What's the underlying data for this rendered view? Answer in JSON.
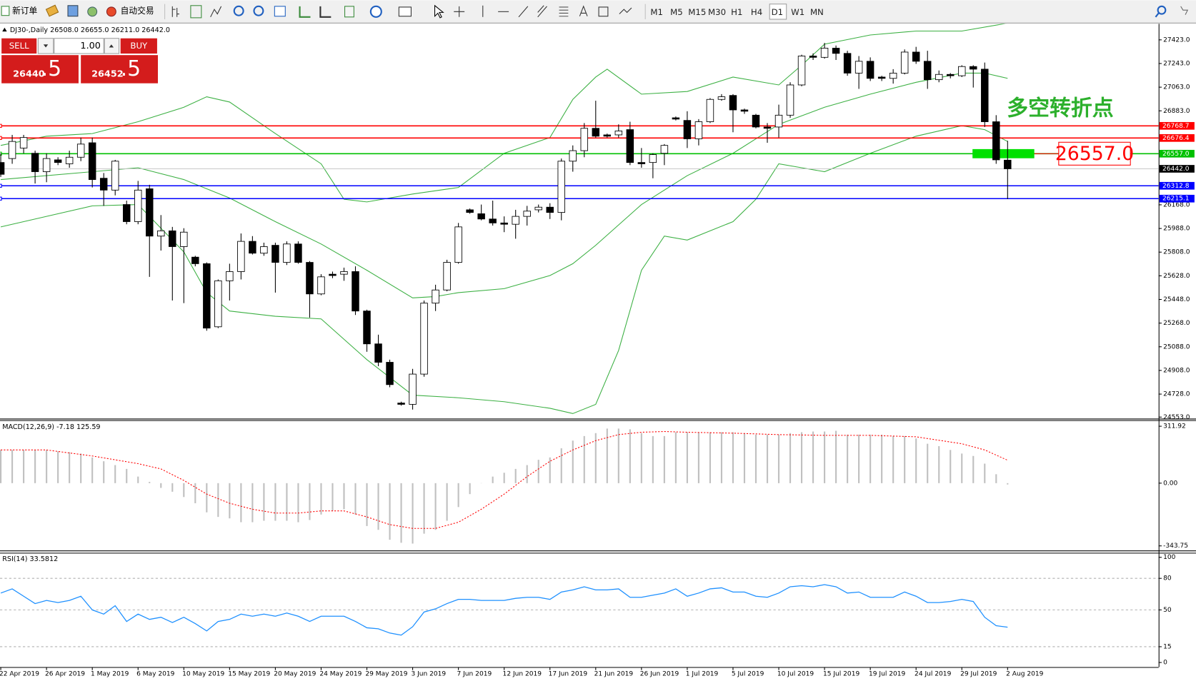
{
  "toolbar": {
    "new_order": "新订单",
    "auto_trading": "自动交易",
    "timeframes": [
      "M1",
      "M5",
      "M15",
      "M30",
      "H1",
      "H4",
      "D1",
      "W1",
      "MN"
    ]
  },
  "trade_panel": {
    "sell": "SELL",
    "buy": "BUY",
    "volume": "1.00",
    "bid_main": "26440",
    "bid_frac": ".5",
    "ask_main": "26452",
    "ask_frac": ".5"
  },
  "chart_data": [
    {
      "type": "candlestick",
      "legend_text": "DJ30-,Daily  26508.0 26655.0 26211.0 26442.0",
      "annotation": "多空转折点",
      "categories": [
        "22 Apr 2019",
        null,
        null,
        null,
        "26 Apr 2019",
        null,
        null,
        null,
        "1 May 2019",
        null,
        null,
        null,
        "6 May 2019",
        null,
        null,
        null,
        "10 May 2019",
        null,
        null,
        null,
        "15 May 2019",
        null,
        null,
        null,
        "20 May 2019",
        null,
        null,
        null,
        "24 May 2019",
        null,
        null,
        null,
        "29 May 2019",
        null,
        null,
        null,
        "3 Jun 2019",
        null,
        null,
        null,
        "7 Jun 2019",
        null,
        null,
        null,
        "12 Jun 2019",
        null,
        null,
        null,
        "17 Jun 2019",
        null,
        null,
        null,
        "21 Jun 2019",
        null,
        null,
        null,
        "26 Jun 2019",
        null,
        null,
        null,
        "1 Jul 2019",
        null,
        null,
        null,
        "5 Jul 2019",
        null,
        null,
        null,
        "10 Jul 2019",
        null,
        null,
        null,
        "15 Jul 2019",
        null,
        null,
        null,
        "19 Jul 2019",
        null,
        null,
        null,
        "24 Jul 2019",
        null,
        null,
        null,
        "29 Jul 2019",
        null,
        null,
        null,
        "2 Aug 2019"
      ],
      "open": [
        26490,
        26520,
        26600,
        26560,
        26420,
        26510,
        26480,
        26530,
        26640,
        26370,
        26280,
        26170,
        26040,
        26290,
        25930,
        25970,
        25850,
        25770,
        25720,
        25240,
        25590,
        25660,
        25890,
        25800,
        25860,
        25730,
        25870,
        25730,
        25490,
        25640,
        25640,
        25660,
        25360,
        25110,
        24970,
        24660,
        24650,
        24880,
        25420,
        25520,
        25730,
        26130,
        26100,
        26060,
        26030,
        26020,
        26080,
        26130,
        26150,
        26110,
        26500,
        26580,
        26750,
        26700,
        26700,
        26740,
        26490,
        26490,
        26560,
        26830,
        26810,
        26670,
        26800,
        26970,
        27000,
        26890,
        26850,
        26760,
        26760,
        26850,
        27080,
        27300,
        27290,
        27360,
        27320,
        27170,
        27260,
        27140,
        27130,
        27170,
        27330,
        27260,
        27120,
        27160,
        27150,
        27220,
        27200,
        26800,
        26508
      ],
      "high": [
        26560,
        26700,
        26700,
        26580,
        26560,
        26530,
        26580,
        26680,
        26680,
        26410,
        26510,
        26200,
        26350,
        26320,
        26090,
        26000,
        25990,
        25780,
        25730,
        25600,
        25720,
        25950,
        25930,
        25880,
        25880,
        25890,
        25890,
        25740,
        25640,
        25660,
        25690,
        25700,
        25370,
        25180,
        24990,
        24670,
        24920,
        25440,
        25560,
        25750,
        26030,
        26140,
        26170,
        26200,
        26080,
        26130,
        26160,
        26170,
        26180,
        26520,
        26620,
        26790,
        26960,
        26710,
        26780,
        26800,
        26600,
        26560,
        26630,
        26840,
        26880,
        26820,
        26980,
        27010,
        27010,
        26900,
        26860,
        26790,
        26930,
        27100,
        27310,
        27320,
        27400,
        27380,
        27340,
        27300,
        27290,
        27150,
        27200,
        27350,
        27370,
        27340,
        27190,
        27170,
        27230,
        27230,
        27250,
        26850,
        26655
      ],
      "low": [
        26380,
        26480,
        26560,
        26330,
        26340,
        26470,
        26450,
        26500,
        26300,
        26160,
        26240,
        26020,
        26020,
        25620,
        25820,
        25440,
        25420,
        25700,
        25210,
        25230,
        25440,
        25600,
        25790,
        25780,
        25500,
        25710,
        25720,
        25310,
        25480,
        25610,
        25590,
        25330,
        25050,
        24940,
        24780,
        24640,
        24610,
        24860,
        25360,
        25510,
        25720,
        26100,
        26050,
        26010,
        25960,
        25910,
        26010,
        26110,
        26060,
        26050,
        26420,
        26530,
        26680,
        26680,
        26680,
        26470,
        26450,
        26370,
        26470,
        26810,
        26600,
        26620,
        26790,
        26960,
        26720,
        26860,
        26750,
        26640,
        26680,
        26830,
        27070,
        27270,
        27280,
        27270,
        27150,
        27050,
        27110,
        27110,
        27090,
        27160,
        27240,
        27050,
        27100,
        27130,
        27140,
        27060,
        26760,
        26480,
        26211
      ],
      "close": [
        26400,
        26650,
        26680,
        26420,
        26520,
        26490,
        26530,
        26630,
        26360,
        26280,
        26500,
        26040,
        26280,
        25930,
        25970,
        25850,
        25960,
        25720,
        25230,
        25590,
        25660,
        25890,
        25800,
        25850,
        25730,
        25870,
        25730,
        25490,
        25620,
        25630,
        25660,
        25360,
        25110,
        24970,
        24800,
        24650,
        24880,
        25420,
        25520,
        25730,
        26000,
        26110,
        26060,
        26030,
        26020,
        26080,
        26120,
        26150,
        26110,
        26500,
        26580,
        26750,
        26690,
        26690,
        26730,
        26490,
        26480,
        26550,
        26620,
        26820,
        26670,
        26800,
        26970,
        26990,
        26890,
        26880,
        26760,
        26750,
        26850,
        27080,
        27300,
        27290,
        27360,
        27320,
        27170,
        27260,
        27130,
        27130,
        27170,
        27330,
        27260,
        27120,
        27160,
        27150,
        27220,
        27200,
        26800,
        26510,
        26442
      ],
      "up_color": "#ffffff",
      "down_color": "#000000",
      "bands": [
        {
          "color": "#3cb043",
          "x": [
            0,
            4,
            8,
            12,
            16,
            18,
            20,
            24,
            28,
            30,
            32,
            36,
            40,
            44,
            48,
            50,
            52,
            53,
            56,
            60,
            64,
            68,
            70,
            72,
            76,
            80,
            84,
            88
          ],
          "values": [
            26620,
            26690,
            26710,
            26800,
            26910,
            26990,
            26950,
            26710,
            26480,
            26210,
            26190,
            26250,
            26300,
            26560,
            26680,
            26970,
            27140,
            27200,
            27010,
            27030,
            27140,
            27080,
            27230,
            27390,
            27460,
            27490,
            27490,
            27550
          ]
        },
        {
          "color": "#3cb043",
          "x": [
            0,
            8,
            12,
            16,
            20,
            24,
            28,
            32,
            36,
            38,
            40,
            44,
            48,
            50,
            52,
            56,
            60,
            64,
            68,
            72,
            76,
            80,
            84,
            86,
            88
          ],
          "values": [
            26360,
            26420,
            26450,
            26360,
            26220,
            26040,
            25870,
            25670,
            25460,
            25470,
            25500,
            25530,
            25630,
            25720,
            25860,
            26170,
            26390,
            26560,
            26780,
            26910,
            27010,
            27100,
            27170,
            27170,
            27130
          ]
        },
        {
          "color": "#3cb043",
          "x": [
            0,
            4,
            8,
            12,
            16,
            18,
            20,
            24,
            28,
            32,
            36,
            40,
            44,
            48,
            50,
            52,
            54,
            56,
            58,
            60,
            64,
            66,
            68,
            70,
            72,
            76,
            80,
            84,
            86,
            88
          ],
          "values": [
            26000,
            26080,
            26160,
            26170,
            25810,
            25500,
            25360,
            25320,
            25300,
            24990,
            24720,
            24700,
            24670,
            24620,
            24580,
            24650,
            25060,
            25670,
            25930,
            25900,
            26040,
            26210,
            26480,
            26450,
            26420,
            26560,
            26690,
            26770,
            26740,
            26650
          ]
        }
      ],
      "levels": [
        {
          "value": 26768.7,
          "label": "26768.7",
          "color": "#ff0000"
        },
        {
          "value": 26676.4,
          "label": "26676.4",
          "color": "#ff0000"
        },
        {
          "value": 26557.0,
          "label": "26557.0",
          "color": "#00c000"
        },
        {
          "value": 26442.0,
          "label": "26442.0",
          "color": "#c0c0c0",
          "label_color": "#000000"
        },
        {
          "value": 26312.8,
          "label": "26312.8",
          "color": "#0000ff"
        },
        {
          "value": 26215.1,
          "label": "26215.1",
          "color": "#0000ff"
        }
      ],
      "ylim": [
        24553,
        27423
      ],
      "yticks": [
        {
          "value": 27423,
          "label": "27423.0"
        },
        {
          "value": 27243,
          "label": "27243.0"
        },
        {
          "value": 27063,
          "label": "27063.0"
        },
        {
          "value": 26883,
          "label": "26883.0"
        },
        {
          "value": 26168,
          "label": "26168.0"
        },
        {
          "value": 25988,
          "label": "25988.0"
        },
        {
          "value": 25808,
          "label": "25808.0"
        },
        {
          "value": 25628,
          "label": "25628.0"
        },
        {
          "value": 25448,
          "label": "25448.0"
        },
        {
          "value": 25268,
          "label": "25268.0"
        },
        {
          "value": 25088,
          "label": "25088.0"
        },
        {
          "value": 24908,
          "label": "24908.0"
        },
        {
          "value": 24728,
          "label": "24728.0"
        },
        {
          "value": 24553,
          "label": "24553.0"
        }
      ]
    },
    {
      "type": "macd",
      "legend_text": "MACD(12,26,9) -7.18 125.59",
      "color": "#c0c0c0",
      "values": [
        182,
        182,
        182,
        182,
        182,
        174,
        170,
        162,
        141,
        120,
        99,
        78,
        36,
        7,
        -26,
        -47,
        -76,
        -110,
        -160,
        -185,
        -193,
        -214,
        -214,
        -206,
        -206,
        -206,
        -214,
        -202,
        -172,
        -152,
        -143,
        -172,
        -235,
        -256,
        -310,
        -327,
        -331,
        -277,
        -256,
        -206,
        -131,
        -60,
        -1,
        36,
        57,
        78,
        99,
        128,
        141,
        191,
        233,
        258,
        274,
        299,
        299,
        295,
        274,
        258,
        258,
        279,
        279,
        279,
        279,
        279,
        279,
        274,
        266,
        266,
        266,
        274,
        279,
        283,
        283,
        287,
        266,
        266,
        266,
        266,
        258,
        258,
        245,
        216,
        203,
        182,
        162,
        149,
        107,
        49,
        -7.18
      ],
      "signal": {
        "color": "#ff0000",
        "x": [
          0,
          4,
          8,
          12,
          14,
          16,
          18,
          20,
          22,
          24,
          26,
          28,
          30,
          32,
          34,
          36,
          38,
          40,
          42,
          44,
          46,
          48,
          50,
          52,
          54,
          56,
          58,
          60,
          64,
          68,
          72,
          76,
          80,
          84,
          86,
          88
        ],
        "values": [
          182,
          182,
          149,
          107,
          78,
          15,
          -60,
          -110,
          -143,
          -164,
          -164,
          -152,
          -152,
          -185,
          -227,
          -248,
          -248,
          -214,
          -143,
          -60,
          36,
          120,
          182,
          233,
          266,
          279,
          283,
          279,
          274,
          266,
          262,
          262,
          254,
          216,
          182,
          125.59
        ]
      },
      "ylim": [
        -343.75,
        311.92
      ],
      "yticks": [
        {
          "value": 311.92,
          "label": "311.92"
        },
        {
          "value": 0,
          "label": "0.00"
        },
        {
          "value": -343.75,
          "label": "-343.75"
        }
      ]
    },
    {
      "type": "line",
      "legend_text": "RSI(14) 33.5812",
      "color": "#1e90ff",
      "values": [
        66,
        70,
        63,
        56,
        59,
        57,
        59,
        63,
        50,
        46,
        54,
        39,
        46,
        41,
        43,
        38,
        43,
        37,
        30,
        39,
        41,
        46,
        44,
        46,
        44,
        47,
        44,
        39,
        44,
        44,
        44,
        39,
        33,
        32,
        28,
        26,
        34,
        48,
        51,
        56,
        60,
        60,
        59,
        59,
        59,
        61,
        62,
        62,
        60,
        67,
        69,
        72,
        69,
        69,
        70,
        62,
        62,
        64,
        66,
        70,
        63,
        66,
        70,
        71,
        67,
        67,
        63,
        62,
        66,
        72,
        73,
        72,
        74,
        72,
        66,
        67,
        62,
        62,
        62,
        67,
        63,
        57,
        57,
        58,
        60,
        58,
        43,
        35,
        33.5812
      ],
      "ylim": [
        0,
        100
      ],
      "yticks": [
        100,
        80,
        50,
        15,
        0
      ],
      "grid": true
    }
  ]
}
